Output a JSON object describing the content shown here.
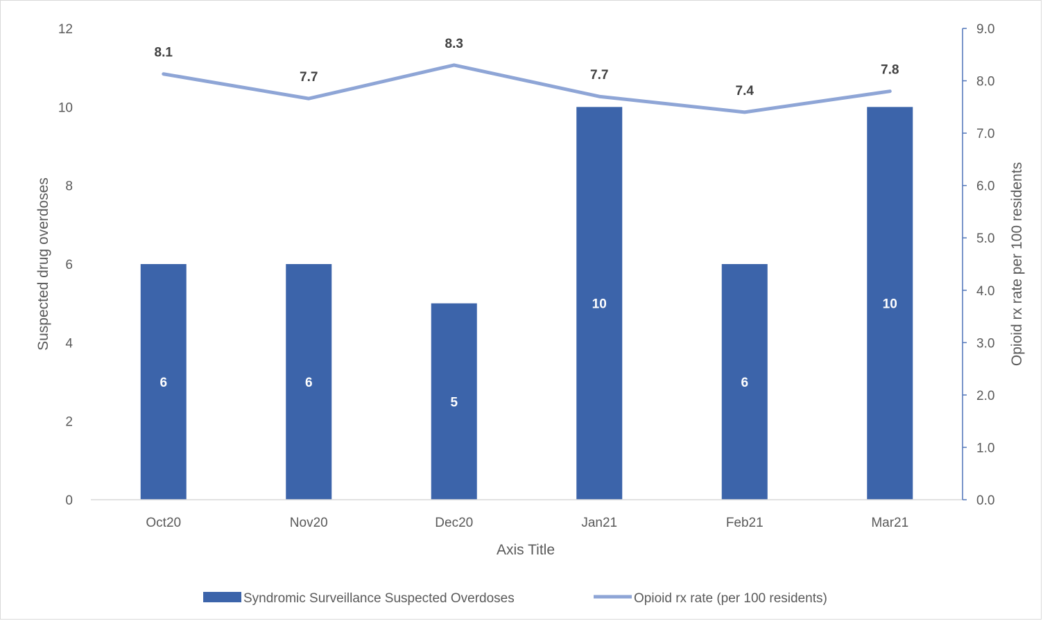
{
  "chart_data": {
    "type": "bar",
    "categories": [
      "Oct20",
      "Nov20",
      "Dec20",
      "Jan21",
      "Feb21",
      "Mar21"
    ],
    "series": [
      {
        "name": "Syndromic Surveillance Suspected Overdoses",
        "type": "bar",
        "axis": "left",
        "values": [
          6,
          6,
          5,
          10,
          6,
          10
        ],
        "data_labels": [
          "6",
          "6",
          "5",
          "10",
          "6",
          "10"
        ],
        "color": "#3c64aa"
      },
      {
        "name": "Opioid rx rate (per 100 residents)",
        "type": "line",
        "axis": "right",
        "values": [
          8.13,
          7.66,
          8.3,
          7.7,
          7.4,
          7.8
        ],
        "data_labels": [
          "8.1",
          "7.7",
          "8.3",
          "7.7",
          "7.4",
          "7.8"
        ],
        "color": "#8ea5d6"
      }
    ],
    "xlabel": "Axis Title",
    "ylabel": "Suspected drug overdoses",
    "y2label": "Opioid rx rate per 100 residents",
    "ylim": [
      0,
      12
    ],
    "y2lim": [
      0,
      9
    ],
    "yticks": [
      "0",
      "2",
      "4",
      "6",
      "8",
      "10",
      "12"
    ],
    "y2ticks": [
      "0.0",
      "1.0",
      "2.0",
      "3.0",
      "4.0",
      "5.0",
      "6.0",
      "7.0",
      "8.0",
      "9.0"
    ],
    "grid": false,
    "legend_position": "bottom",
    "colors": {
      "axis_left": "#d9d9d9",
      "axis_right": "#4f74b8"
    }
  }
}
